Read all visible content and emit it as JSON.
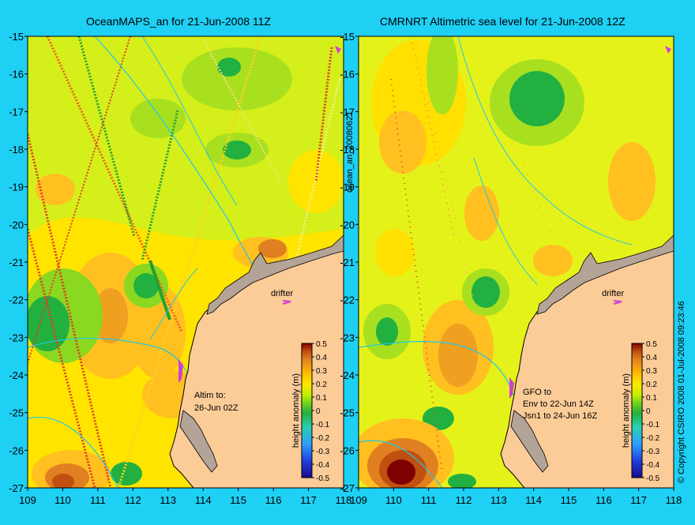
{
  "panels": [
    {
      "id": "left",
      "title": "OceanMAPS_an for 21-Jun-2008 11Z",
      "x_ticks": [
        "109",
        "110",
        "111",
        "112",
        "113",
        "114",
        "115",
        "116",
        "117",
        "118"
      ],
      "y_ticks": [
        "-15",
        "-16",
        "-17",
        "-18",
        "-19",
        "-20",
        "-21",
        "-22",
        "-23",
        "-24",
        "-25",
        "-26",
        "-27"
      ],
      "drifter_label": "drifter",
      "note_lines": [
        "Altim to:",
        "26-Jun 02Z"
      ],
      "colorbar_ticks": [
        "0.5",
        "0.4",
        "0.3",
        "0.2",
        "0.1",
        "0",
        "-0.1",
        "-0.2",
        "-0.3",
        "-0.4",
        "-0.5"
      ],
      "colorbar_label": "height anomaly (m)"
    },
    {
      "id": "right",
      "title": "CMRNRT Altimetric sea level  for 21-Jun-2008 12Z",
      "x_ticks": [
        "109",
        "110",
        "111",
        "112",
        "113",
        "114",
        "115",
        "116",
        "117",
        "118"
      ],
      "y_ticks": [
        "-15",
        "-16",
        "-17",
        "-18",
        "-19",
        "-20",
        "-21",
        "-22",
        "-23",
        "-24",
        "-25",
        "-26",
        "-27"
      ],
      "drifter_label": "drifter",
      "note_lines": [
        "GFO to",
        "Env to 22-Jun 14Z",
        "Jsn1 to 24-Jun 16Z"
      ],
      "colorbar_ticks": [
        "0.5",
        "0.4",
        "0.3",
        "0.2",
        "0.1",
        "0",
        "-0.1",
        "-0.2",
        "-0.3",
        "-0.4",
        "-0.5"
      ],
      "colorbar_label": "height anomaly (m)"
    }
  ],
  "side_label": "ocean_an_20080621",
  "copyright": "© Copyright CSIRO 2008   01-Jul-2008 09:23:46",
  "colors": {
    "background": "#1fd0f5",
    "land": "#fccc98",
    "shelf": "#b3a497",
    "anomaly_scale": [
      "#1a0a8c",
      "#1f3cdc",
      "#2ea0ff",
      "#2ad0b0",
      "#22b03a",
      "#6ad020",
      "#c8f000",
      "#ffe800",
      "#ffb400",
      "#e08020",
      "#c05010",
      "#800000"
    ]
  }
}
